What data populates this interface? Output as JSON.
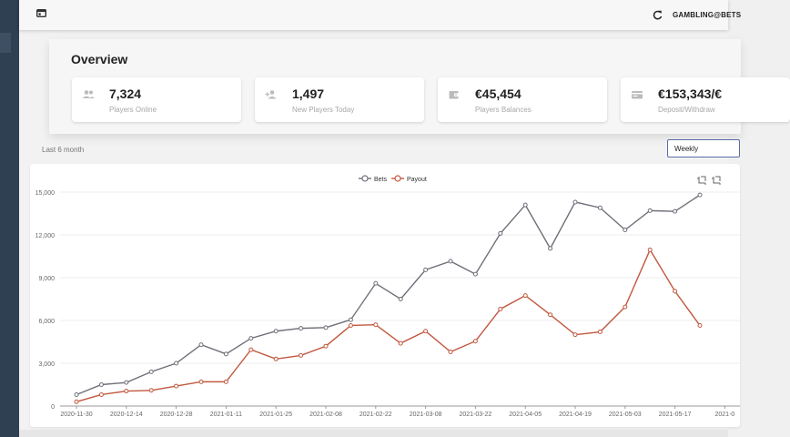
{
  "topbar": {
    "app_icon": "browser-window-icon",
    "refresh_icon": "refresh-icon",
    "user_email": "GAMBLING@BETS"
  },
  "overview": {
    "title": "Overview",
    "stats": [
      {
        "value": "7,324",
        "label": "Players Online",
        "icon": "users-icon"
      },
      {
        "value": "1,497",
        "label": "New Players Today",
        "icon": "user-add-icon"
      },
      {
        "value": "€45,454",
        "label": "Players Balances",
        "icon": "wallet-icon"
      },
      {
        "value": "€153,343/€",
        "label": "Deposit/Withdraw",
        "icon": "credit-card-icon"
      }
    ]
  },
  "filters": {
    "period_label": "Last 6 month",
    "granularity_value": "Weekly"
  },
  "colors": {
    "bets": "#6e7079",
    "payout": "#c2583f",
    "sidebar": "#2f4052",
    "select_border": "#5b6aa8"
  },
  "chart_data": {
    "type": "line",
    "legend_position": "top-center",
    "toolbox_icons": [
      "crop-icon",
      "crop-reset-icon"
    ],
    "ylim": [
      0,
      15000
    ],
    "y_ticks": [
      "15,000",
      "12,000",
      "9,000",
      "6,000",
      "3,000",
      "0"
    ],
    "x_tick_labels": [
      "2020-11-30",
      "2020-12-14",
      "2020-12-28",
      "2021-01-11",
      "2021-01-25",
      "2021-02-08",
      "2021-02-22",
      "2021-03-08",
      "2021-03-22",
      "2021-04-05",
      "2021-04-19",
      "2021-05-03",
      "2021-05-17",
      "2021-0"
    ],
    "x": [
      "2020-11-30",
      "2020-12-07",
      "2020-12-14",
      "2020-12-21",
      "2020-12-28",
      "2021-01-04",
      "2021-01-11",
      "2021-01-18",
      "2021-01-25",
      "2021-02-01",
      "2021-02-08",
      "2021-02-15",
      "2021-02-22",
      "2021-03-01",
      "2021-03-08",
      "2021-03-15",
      "2021-03-22",
      "2021-03-29",
      "2021-04-05",
      "2021-04-12",
      "2021-04-19",
      "2021-04-26",
      "2021-05-03",
      "2021-05-10",
      "2021-05-17",
      "2021-05-24"
    ],
    "series": [
      {
        "name": "Bets",
        "values": [
          800,
          1500,
          1650,
          2400,
          3000,
          4300,
          3650,
          4750,
          5250,
          5450,
          5500,
          6050,
          8600,
          7500,
          9550,
          10150,
          9250,
          12100,
          14100,
          11050,
          14300,
          13900,
          12350,
          13700,
          13650,
          14800
        ]
      },
      {
        "name": "Payout",
        "values": [
          300,
          800,
          1050,
          1100,
          1400,
          1700,
          1700,
          3950,
          3300,
          3550,
          4200,
          5650,
          5700,
          4400,
          5250,
          3800,
          4550,
          6800,
          7750,
          6400,
          5000,
          5200,
          6950,
          10950,
          8050,
          5650
        ]
      }
    ]
  }
}
